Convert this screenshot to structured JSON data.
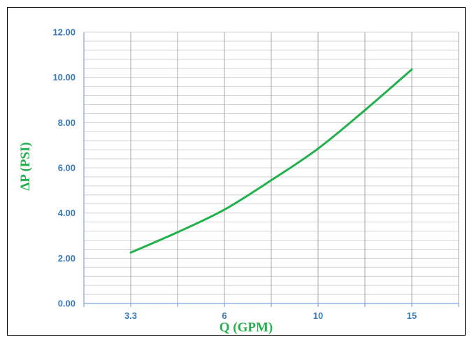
{
  "chart_data": {
    "type": "line",
    "xlabel": "Q (GPM)",
    "ylabel": "ΔP (PSI)",
    "categories": [
      "3.3",
      "6",
      "10",
      "15"
    ],
    "x": [
      3.3,
      4.65,
      6,
      8,
      10,
      12.5,
      15
    ],
    "series": [
      {
        "values": [
          2.25,
          3.15,
          4.15,
          5.45,
          6.85,
          8.55,
          10.35
        ]
      }
    ],
    "y_ticks": [
      "0.00",
      "2.00",
      "4.00",
      "6.00",
      "8.00",
      "10.00",
      "12.00"
    ],
    "ylim": [
      0,
      12
    ],
    "grid": true,
    "line_color": "#22b14c",
    "tick_color": "#3a7ab8"
  }
}
